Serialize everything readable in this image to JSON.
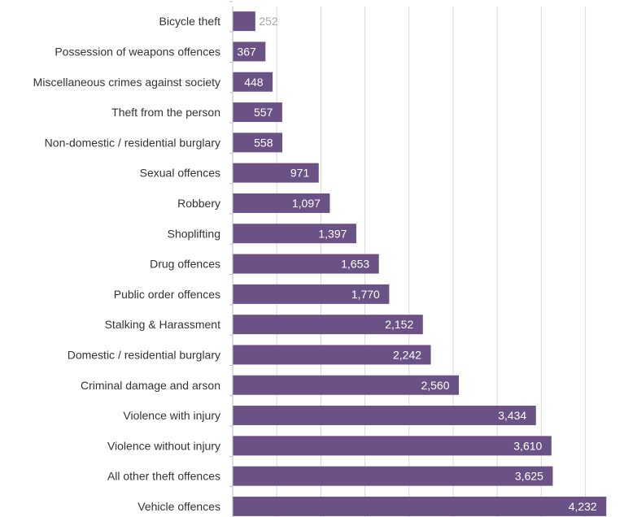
{
  "chart_data": {
    "type": "bar",
    "orientation": "horizontal",
    "title": "",
    "xlabel": "",
    "ylabel": "",
    "categories": [
      "Bicycle theft",
      "Possession of weapons offences",
      "Miscellaneous crimes against society",
      "Theft from the person",
      "Non-domestic / residential burglary",
      "Sexual offences",
      "Robbery",
      "Shoplifting",
      "Drug offences",
      "Public order offences",
      "Stalking & Harassment",
      "Domestic / residential burglary",
      "Criminal damage and arson",
      "Violence with injury",
      "Violence without injury",
      "All other theft offences",
      "Vehicle offences"
    ],
    "values": [
      252,
      367,
      448,
      557,
      558,
      971,
      1097,
      1397,
      1653,
      1770,
      2152,
      2242,
      2560,
      3434,
      3610,
      3625,
      4232
    ],
    "value_labels": [
      "252",
      "367",
      "448",
      "557",
      "558",
      "971",
      "1,097",
      "1,397",
      "1,653",
      "1,770",
      "2,152",
      "2,242",
      "2,560",
      "3,434",
      "3,610",
      "3,625",
      "4,232"
    ],
    "xlim": [
      0,
      4500
    ],
    "gridlines": [
      500,
      1000,
      1500,
      2000,
      2500,
      3000,
      3500,
      4000,
      4500
    ],
    "grid": true,
    "legend": "none",
    "bar_color": "#6a5186",
    "label_inside_color": "#ffffff",
    "label_outside_color": "#a6a6a6"
  }
}
